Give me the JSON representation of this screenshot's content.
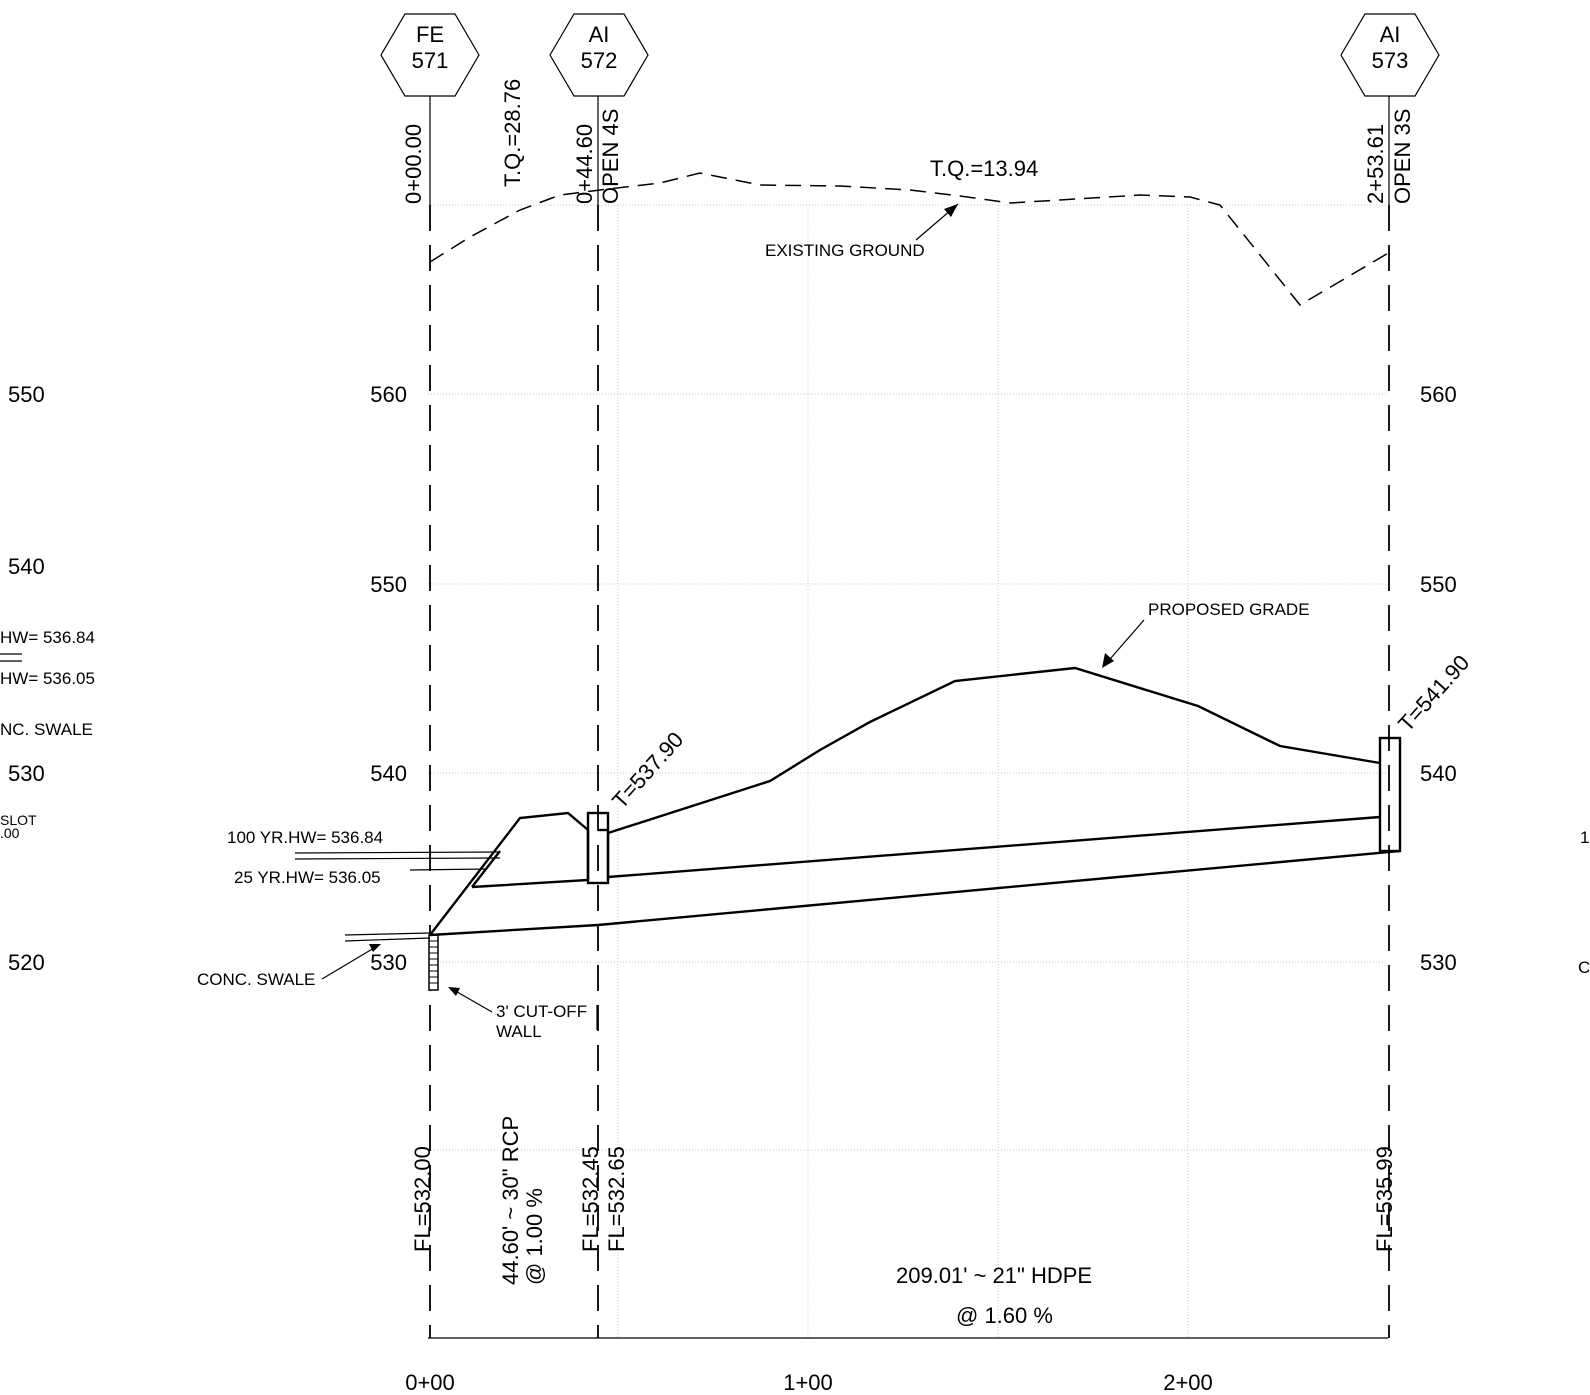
{
  "structures": [
    {
      "type": "FE",
      "number": "571"
    },
    {
      "type": "AI",
      "number": "572"
    },
    {
      "type": "AI",
      "number": "573"
    }
  ],
  "stations": {
    "s1": "0+00.00",
    "s2": "0+44.60",
    "s2_note": "OPEN 4S",
    "s3": "2+53.61",
    "s3_note": "OPEN 3S"
  },
  "elevation_labels": [
    "530",
    "540",
    "550",
    "560"
  ],
  "left_partial_labels": {
    "e550": "550",
    "e540": "540",
    "e530": "530",
    "e520": "520",
    "hw100": "HW= 536.84",
    "hw25": "HW= 536.05",
    "swale": "NC. SWALE",
    "slot": "SLOT",
    "slot2": ".00"
  },
  "right_partial_labels": {
    "c1": "1",
    "c2": "C"
  },
  "station_labels": [
    "0+00",
    "1+00",
    "2+00"
  ],
  "annotations": {
    "tq1": "T.Q.=28.76",
    "tq2": "T.Q.=13.94",
    "existing_ground": "EXISTING GROUND",
    "proposed_grade": "PROPOSED GRADE",
    "t_572": "T=537.90",
    "t_573": "T=541.90",
    "hw100": "100 YR.HW= 536.84",
    "hw25": "25 YR.HW= 536.05",
    "conc_swale": "CONC. SWALE",
    "cutoff1": "3' CUT-OFF",
    "cutoff2": "WALL",
    "fl1": "FL=532.00",
    "fl2": "FL=532.45",
    "fl3": "FL=532.65",
    "fl4": "FL=535.99",
    "pipe1_len": "44.60' ~ 30\" RCP",
    "pipe1_slope": "@ 1.00 %",
    "pipe2_len": "209.01' ~ 21\" HDPE",
    "pipe2_slope": "@ 1.60 %"
  }
}
